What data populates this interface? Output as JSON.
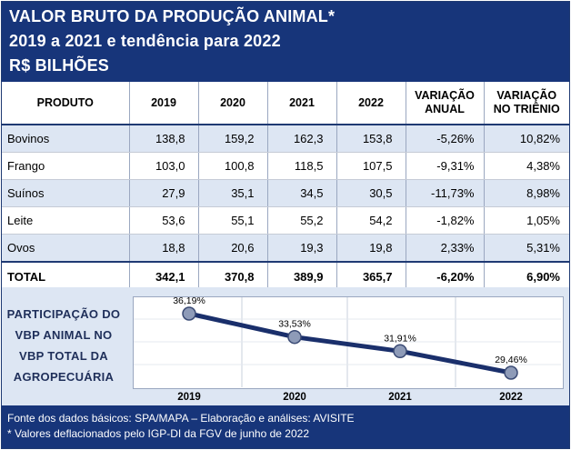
{
  "header": {
    "line1": "VALOR BRUTO DA PRODUÇÃO ANIMAL*",
    "line2": "2019 a 2021 e tendência para 2022",
    "line3": "R$ BILHÕES"
  },
  "table": {
    "columns": [
      "PRODUTO",
      "2019",
      "2020",
      "2021",
      "2022",
      "VARIAÇÃO ANUAL",
      "VARIAÇÃO NO TRIÊNIO"
    ],
    "col_line1": [
      "VARIAÇÃO",
      "VARIAÇÃO"
    ],
    "col_line2": [
      "ANUAL",
      "NO TRIÊNIO"
    ],
    "rows": [
      [
        "Bovinos",
        "138,8",
        "159,2",
        "162,3",
        "153,8",
        "-5,26%",
        "10,82%"
      ],
      [
        "Frango",
        "103,0",
        "100,8",
        "118,5",
        "107,5",
        "-9,31%",
        "4,38%"
      ],
      [
        "Suínos",
        "27,9",
        "35,1",
        "34,5",
        "30,5",
        "-11,73%",
        "8,98%"
      ],
      [
        "Leite",
        "53,6",
        "55,1",
        "55,2",
        "54,2",
        "-1,82%",
        "1,05%"
      ],
      [
        "Ovos",
        "18,8",
        "20,6",
        "19,3",
        "19,8",
        "2,33%",
        "5,31%"
      ]
    ],
    "total": [
      "TOTAL",
      "342,1",
      "370,8",
      "389,9",
      "365,7",
      "-6,20%",
      "6,90%"
    ]
  },
  "side_label": {
    "l1": "PARTICIPAÇÃO DO",
    "l2": "VBP ANIMAL NO",
    "l3": "VBP TOTAL DA",
    "l4": "AGROPECUÁRIA"
  },
  "chart_data": {
    "type": "line",
    "x": [
      "2019",
      "2020",
      "2021",
      "2022"
    ],
    "values": [
      36.19,
      33.53,
      31.91,
      29.46
    ],
    "labels": [
      "36,19%",
      "33,53%",
      "31,91%",
      "29,46%"
    ],
    "title": "",
    "xlabel": "",
    "ylabel": "",
    "line_color": "#1a2f6b",
    "marker_color": "#8e9bb8",
    "grid": true
  },
  "footer": {
    "source": "Fonte dos dados básicos: SPA/MAPA – Elaboração e análises: AVISITE",
    "note": "* Valores deflacionados pelo IGP-DI da FGV de junho de 2022"
  },
  "colors": {
    "navy": "#17357a",
    "band": "#dde6f3",
    "negative": "#e0001b"
  }
}
